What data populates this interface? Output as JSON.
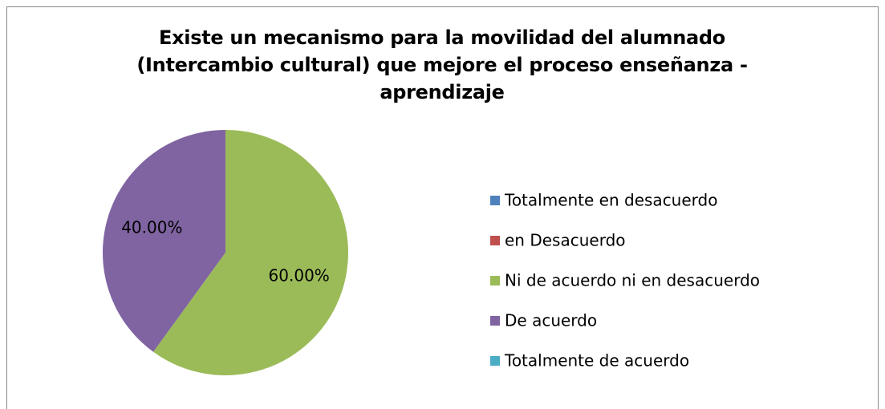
{
  "chart_data": {
    "type": "pie",
    "title": "Existe un mecanismo para la movilidad del alumnado (Intercambio cultural)  que mejore el proceso enseñanza - aprendizaje",
    "categories": [
      "Totalmente en desacuerdo",
      "en Desacuerdo",
      "Ni de acuerdo ni en desacuerdo",
      "De acuerdo",
      "Totalmente de acuerdo"
    ],
    "values": [
      0,
      0,
      60,
      40,
      0
    ],
    "value_labels": [
      null,
      null,
      "60.00%",
      "40.00%",
      null
    ],
    "colors": [
      "#4f81bd",
      "#c0504d",
      "#9bbb59",
      "#8064a2",
      "#4bacc6"
    ],
    "legend": "right"
  }
}
